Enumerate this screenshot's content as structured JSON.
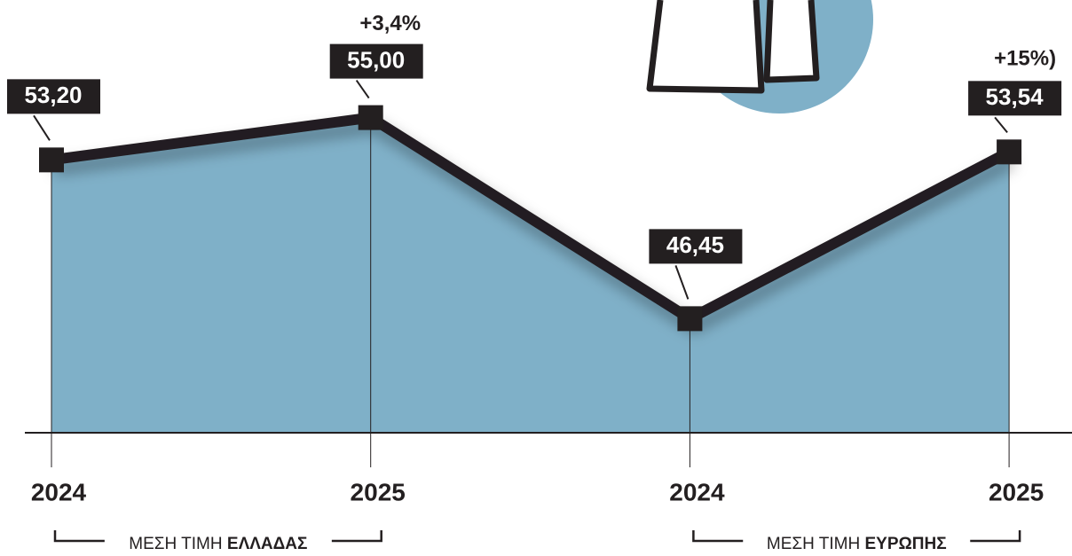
{
  "chart_data": {
    "type": "area",
    "categories": [
      "2024",
      "2025",
      "2024",
      "2025"
    ],
    "values": [
      53.2,
      55.0,
      46.45,
      53.54
    ],
    "value_labels": [
      "53,20",
      "55,00",
      "46,45",
      "53,54"
    ],
    "annotations": [
      "+3,4%",
      "+15%)"
    ],
    "groups": [
      {
        "prefix": "ΜΕΣΗ ΤΙΜΗ",
        "name": "ΕΛΛΑΔΑΣ"
      },
      {
        "prefix": "ΜΕΣΗ ΤΙΜΗ",
        "name": "ΕΥΡΩΠΗΣ"
      }
    ],
    "color": "#7fb0c8",
    "line_color": "#231f20",
    "ylim": [
      41.6,
      60
    ]
  }
}
